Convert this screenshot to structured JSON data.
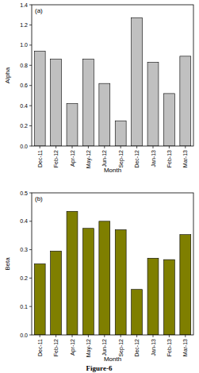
{
  "chart_data": [
    {
      "type": "bar",
      "annotation": "(a)",
      "x_label": "Month",
      "y_label": "Alpha",
      "categories": [
        "Dec-11",
        "Feb-12",
        "Apr-12",
        "May-12",
        "Jun-12",
        "Sep-12",
        "Dec-12",
        "Jan-13",
        "Feb-13",
        "Mar-13"
      ],
      "values": [
        0.94,
        0.86,
        0.42,
        0.86,
        0.62,
        0.25,
        1.27,
        0.83,
        0.52,
        0.89
      ],
      "color": "#c0c0c0",
      "ylim": [
        0,
        1.4
      ],
      "yticks": [
        {
          "value": 0,
          "label": "0.0"
        },
        0.2,
        0.4,
        0.6,
        0.8,
        {
          "value": 1,
          "label": "1.0"
        },
        1.2,
        1.4
      ],
      "grid": false
    },
    {
      "type": "bar",
      "annotation": "(b)",
      "x_label": "Month",
      "y_label": "Beta",
      "categories": [
        "Dec-11",
        "Feb-12",
        "Apr-12",
        "May-12",
        "Jun-12",
        "Sep-12",
        "Dec-12",
        "Jan-13",
        "Feb-13",
        "Mar-13"
      ],
      "values": [
        0.25,
        0.295,
        0.435,
        0.375,
        0.4,
        0.37,
        0.16,
        0.27,
        0.265,
        0.353
      ],
      "color": "#7f7f00",
      "ylim": [
        0,
        0.5
      ],
      "yticks": [
        {
          "value": 0,
          "label": "0.0"
        },
        0.1,
        0.2,
        0.3,
        0.4,
        0.5
      ],
      "grid": false
    }
  ],
  "figure": {
    "caption": "Figure-6"
  }
}
